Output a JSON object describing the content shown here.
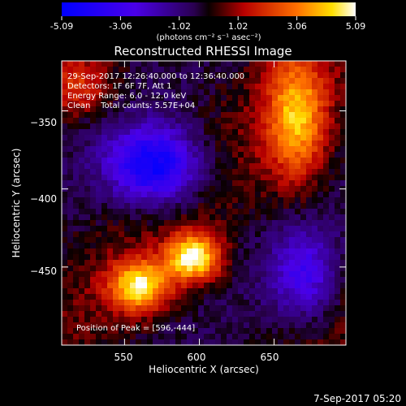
{
  "colorbar": {
    "ticks": [
      "-5.09",
      "-3.06",
      "-1.02",
      "1.02",
      "3.06",
      "5.09"
    ],
    "units_label": "(photons cm⁻² s⁻¹ asec⁻²)"
  },
  "chart_data": {
    "type": "heatmap",
    "title": "Reconstructed RHESSI Image",
    "xlabel": "Heliocentric X (arcsec)",
    "ylabel": "Heliocentric Y (arcsec)",
    "xlim": [
      508,
      698
    ],
    "ylim": [
      -500,
      -318
    ],
    "x_ticks": [
      550,
      600,
      650
    ],
    "y_ticks": [
      -350,
      -400,
      -450
    ],
    "x_tick_labels": [
      "550",
      "600",
      "650"
    ],
    "y_tick_labels": [
      "−350",
      "−400",
      "−450"
    ],
    "color_range": [
      -5.09,
      5.09
    ],
    "colormap": "blue-purple-red-yellow-white",
    "annotations": [
      "29-Sep-2017 12:26:40.000 to 12:36:40.000",
      "Detectors: 1F 6F 7F, Att 1",
      "Energy Range: 6.0 - 12.0 keV",
      "Clean    Total counts: 5.57E+04"
    ],
    "peak_label": "Position of Peak = [596,-444]",
    "peak": [
      596,
      -444
    ],
    "features": [
      {
        "name": "central-negative-trough",
        "x": 570,
        "y": -385,
        "value": -4.8
      },
      {
        "name": "peak-source",
        "x": 596,
        "y": -444,
        "value": 5.09
      },
      {
        "name": "lower-left-source",
        "x": 560,
        "y": -462,
        "value": 4.5
      },
      {
        "name": "upper-right-source",
        "x": 665,
        "y": -355,
        "value": 3.8
      },
      {
        "name": "upper-left-positive",
        "x": 520,
        "y": -335,
        "value": 2.0
      },
      {
        "name": "lower-right-negative",
        "x": 670,
        "y": -455,
        "value": -2.6
      }
    ]
  },
  "footer": {
    "timestamp": "7-Sep-2017 05:20"
  }
}
